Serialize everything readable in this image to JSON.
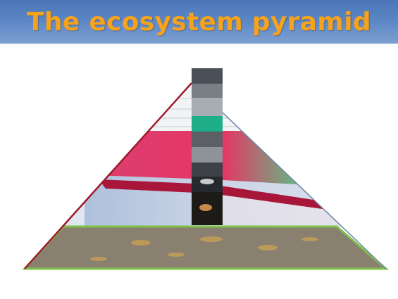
{
  "header": {
    "title": "The ecosystem pyramid"
  }
}
